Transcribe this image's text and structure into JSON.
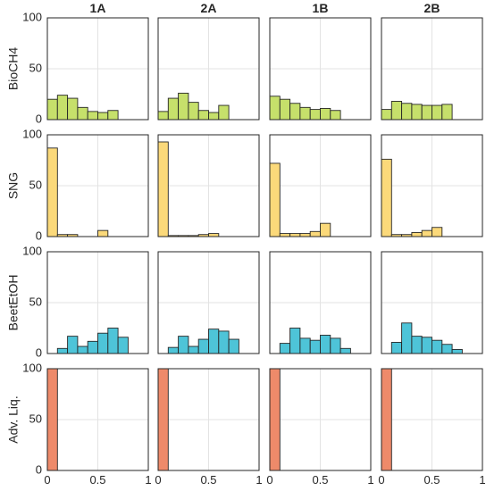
{
  "chart_data": {
    "type": "bar",
    "layout": "4x4 grid of histograms; rows = fuel types, columns = scenarios",
    "columns": [
      "1A",
      "2A",
      "1B",
      "2B"
    ],
    "rows": [
      "BioCH4",
      "SNG",
      "BeetEtOH",
      "Adv. Liq."
    ],
    "row_colors": [
      "#c6e06b",
      "#fbd97a",
      "#4ec4d8",
      "#ee8a6a"
    ],
    "xlim": [
      0,
      1
    ],
    "ylim": [
      0,
      100
    ],
    "x_ticks": [
      "0",
      "0.5",
      "1"
    ],
    "y_ticks": [
      "0",
      "50",
      "100"
    ],
    "grid": true,
    "bin_width": 0.1,
    "bin_starts": [
      0,
      0.1,
      0.2,
      0.3,
      0.4,
      0.5,
      0.6,
      0.7,
      0.8,
      0.9
    ],
    "panels": [
      [
        {
          "column": "1A",
          "values": [
            20,
            24,
            21,
            12,
            8,
            7,
            9,
            0,
            0,
            0
          ]
        },
        {
          "column": "2A",
          "values": [
            8,
            21,
            26,
            17,
            9,
            7,
            14,
            0,
            0,
            0
          ]
        },
        {
          "column": "1B",
          "values": [
            23,
            20,
            16,
            12,
            10,
            11,
            9,
            0,
            0,
            0
          ]
        },
        {
          "column": "2B",
          "values": [
            10,
            18,
            16,
            15,
            14,
            14,
            15,
            0,
            0,
            0
          ]
        }
      ],
      [
        {
          "column": "1A",
          "values": [
            87,
            2,
            2,
            0,
            0,
            6,
            0,
            0,
            0,
            0
          ]
        },
        {
          "column": "2A",
          "values": [
            93,
            1,
            1,
            1,
            2,
            3,
            0,
            0,
            0,
            0
          ]
        },
        {
          "column": "1B",
          "values": [
            72,
            3,
            3,
            3,
            5,
            13,
            0,
            0,
            0,
            0
          ]
        },
        {
          "column": "2B",
          "values": [
            76,
            2,
            2,
            4,
            6,
            9,
            0,
            0,
            0,
            0
          ]
        }
      ],
      [
        {
          "column": "1A",
          "values": [
            0,
            5,
            17,
            7,
            12,
            20,
            25,
            16,
            0,
            0
          ]
        },
        {
          "column": "2A",
          "values": [
            0,
            6,
            17,
            7,
            14,
            24,
            22,
            14,
            0,
            0
          ]
        },
        {
          "column": "1B",
          "values": [
            0,
            10,
            25,
            15,
            13,
            18,
            15,
            5,
            0,
            0
          ]
        },
        {
          "column": "2B",
          "values": [
            0,
            11,
            30,
            17,
            16,
            13,
            9,
            4,
            0,
            0
          ]
        }
      ],
      [
        {
          "column": "1A",
          "values": [
            100,
            0,
            0,
            0,
            0,
            0,
            0,
            0,
            0,
            0
          ]
        },
        {
          "column": "2A",
          "values": [
            100,
            0,
            0,
            0,
            0,
            0,
            0,
            0,
            0,
            0
          ]
        },
        {
          "column": "1B",
          "values": [
            100,
            0,
            0,
            0,
            0,
            0,
            0,
            0,
            0,
            0
          ]
        },
        {
          "column": "2B",
          "values": [
            100,
            0,
            0,
            0,
            0,
            0,
            0,
            0,
            0,
            0
          ]
        }
      ]
    ]
  }
}
